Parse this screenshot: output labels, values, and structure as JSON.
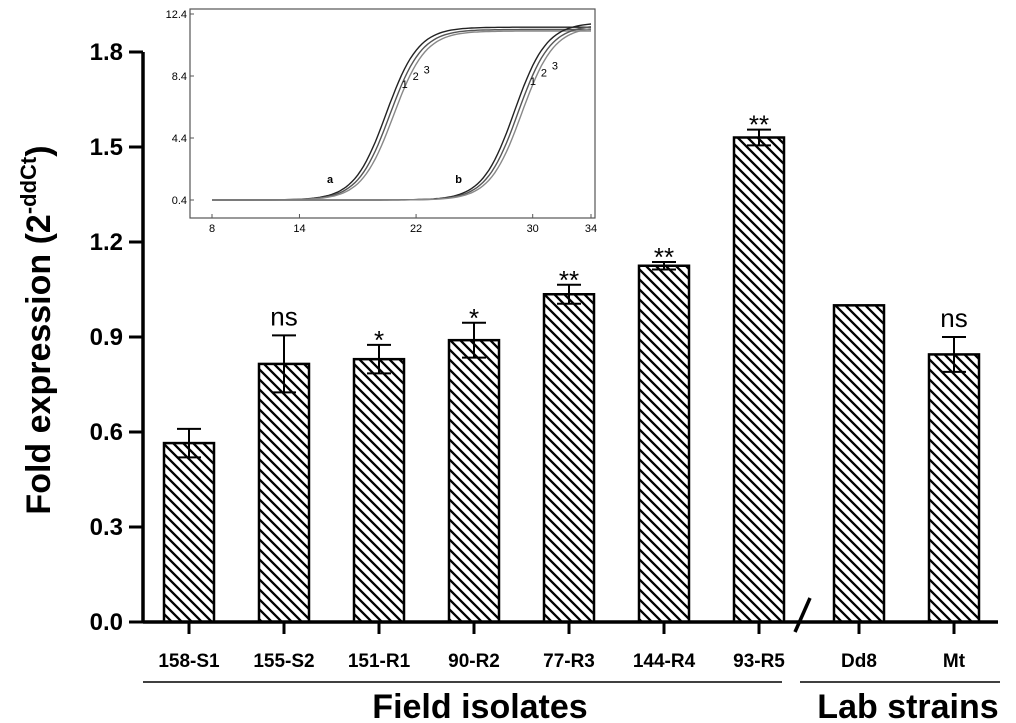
{
  "chart_data": {
    "type": "bar",
    "ylabel": "Fold expression (2",
    "ylabel_superscript": "-ddCt",
    "ylabel_close": ")",
    "ylim": [
      0,
      1.8
    ],
    "yticks": [
      "0.0",
      "0.3",
      "0.6",
      "0.9",
      "1.2",
      "1.5",
      "1.8"
    ],
    "ytick_values": [
      0,
      0.3,
      0.6,
      0.9,
      1.2,
      1.5,
      1.8
    ],
    "categories": [
      "158-S1",
      "155-S2",
      "151-R1",
      "90-R2",
      "77-R3",
      "144-R4",
      "93-R5",
      "Dd8",
      "Mt"
    ],
    "values": [
      0.565,
      0.815,
      0.83,
      0.89,
      1.035,
      1.125,
      1.53,
      1.0,
      0.845
    ],
    "errors": [
      0.045,
      0.09,
      0.045,
      0.055,
      0.03,
      0.012,
      0.025,
      0,
      0.055
    ],
    "significance": [
      "",
      "ns",
      "*",
      "*",
      "**",
      "**",
      "**",
      "",
      "ns"
    ],
    "groups": [
      {
        "label": "Field isolates",
        "start": 0,
        "end": 6
      },
      {
        "label": "Lab strains",
        "start": 7,
        "end": 8
      }
    ],
    "bar_fill": "hatched",
    "inset": {
      "type": "line",
      "xticks": [
        "8",
        "14",
        "22",
        "30",
        "34"
      ],
      "xtick_values": [
        8,
        14,
        22,
        30,
        34
      ],
      "yticks": [
        "0.4",
        "4.4",
        "8.4",
        "12.4"
      ],
      "ytick_values": [
        0.4,
        4.4,
        8.4,
        12.4
      ],
      "xlim": [
        8,
        34
      ],
      "ylim": [
        0.4,
        12.4
      ],
      "curve_groups": [
        {
          "label": "a",
          "midpoint": 20.2,
          "plateau": 11.4,
          "labels": [
            "1",
            "2",
            "3"
          ]
        },
        {
          "label": "b",
          "midpoint": 29.0,
          "plateau": 11.7,
          "labels": [
            "1",
            "2",
            "3"
          ]
        }
      ]
    }
  }
}
